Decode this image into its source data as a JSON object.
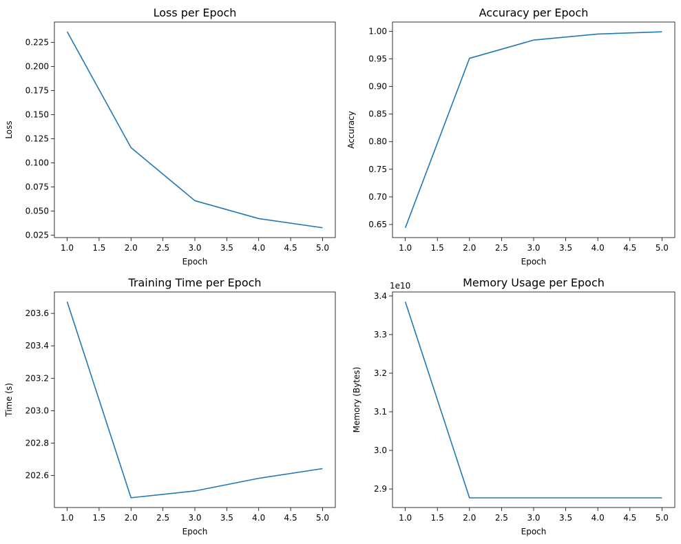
{
  "chart_data": [
    {
      "type": "line",
      "title": "Loss per Epoch",
      "xlabel": "Epoch",
      "ylabel": "Loss",
      "x": [
        1,
        2,
        3,
        4,
        5
      ],
      "series": [
        {
          "values": [
            0.2362,
            0.1158,
            0.0607,
            0.0421,
            0.0326
          ]
        }
      ],
      "xlim": [
        0.8,
        5.2
      ],
      "ylim": [
        0.0224,
        0.2462
      ],
      "xticks": [
        1.0,
        1.5,
        2.0,
        2.5,
        3.0,
        3.5,
        4.0,
        4.5,
        5.0
      ],
      "xtick_labels": [
        "1.0",
        "1.5",
        "2.0",
        "2.5",
        "3.0",
        "3.5",
        "4.0",
        "4.5",
        "5.0"
      ],
      "yticks": [
        0.025,
        0.05,
        0.075,
        0.1,
        0.125,
        0.15,
        0.175,
        0.2,
        0.225
      ],
      "ytick_labels": [
        "0.025",
        "0.050",
        "0.075",
        "0.100",
        "0.125",
        "0.150",
        "0.175",
        "0.200",
        "0.225"
      ],
      "grid": false,
      "line_color": "#1f77b4"
    },
    {
      "type": "line",
      "title": "Accuracy per Epoch",
      "xlabel": "Epoch",
      "ylabel": "Accuracy",
      "x": [
        1,
        2,
        3,
        4,
        5
      ],
      "series": [
        {
          "values": [
            0.644,
            0.951,
            0.984,
            0.995,
            0.999
          ]
        }
      ],
      "xlim": [
        0.8,
        5.2
      ],
      "ylim": [
        0.6263,
        1.0167
      ],
      "xticks": [
        1.0,
        1.5,
        2.0,
        2.5,
        3.0,
        3.5,
        4.0,
        4.5,
        5.0
      ],
      "xtick_labels": [
        "1.0",
        "1.5",
        "2.0",
        "2.5",
        "3.0",
        "3.5",
        "4.0",
        "4.5",
        "5.0"
      ],
      "yticks": [
        0.65,
        0.7,
        0.75,
        0.8,
        0.85,
        0.9,
        0.95,
        1.0
      ],
      "ytick_labels": [
        "0.65",
        "0.70",
        "0.75",
        "0.80",
        "0.85",
        "0.90",
        "0.95",
        "1.00"
      ],
      "grid": false,
      "line_color": "#1f77b4"
    },
    {
      "type": "line",
      "title": "Training Time per Epoch",
      "xlabel": "Epoch",
      "ylabel": "Time (s)",
      "x": [
        1,
        2,
        3,
        4,
        5
      ],
      "series": [
        {
          "values": [
            203.672,
            202.463,
            202.505,
            202.583,
            202.643
          ]
        }
      ],
      "xlim": [
        0.8,
        5.2
      ],
      "ylim": [
        202.403,
        203.732
      ],
      "xticks": [
        1.0,
        1.5,
        2.0,
        2.5,
        3.0,
        3.5,
        4.0,
        4.5,
        5.0
      ],
      "xtick_labels": [
        "1.0",
        "1.5",
        "2.0",
        "2.5",
        "3.0",
        "3.5",
        "4.0",
        "4.5",
        "5.0"
      ],
      "yticks": [
        202.6,
        202.8,
        203.0,
        203.2,
        203.4,
        203.6
      ],
      "ytick_labels": [
        "202.6",
        "202.8",
        "203.0",
        "203.2",
        "203.4",
        "203.6"
      ],
      "grid": false,
      "line_color": "#1f77b4"
    },
    {
      "type": "line",
      "title": "Memory Usage per Epoch",
      "xlabel": "Epoch",
      "ylabel": "Memory (Bytes)",
      "x": [
        1,
        2,
        3,
        4,
        5
      ],
      "series": [
        {
          "values": [
            3.385,
            2.877,
            2.877,
            2.877,
            2.877
          ]
        }
      ],
      "value_multiplier_label": "1e10",
      "xlim": [
        0.8,
        5.2
      ],
      "ylim": [
        2.852,
        3.4104
      ],
      "xticks": [
        1.0,
        1.5,
        2.0,
        2.5,
        3.0,
        3.5,
        4.0,
        4.5,
        5.0
      ],
      "xtick_labels": [
        "1.0",
        "1.5",
        "2.0",
        "2.5",
        "3.0",
        "3.5",
        "4.0",
        "4.5",
        "5.0"
      ],
      "yticks": [
        2.9,
        3.0,
        3.1,
        3.2,
        3.3,
        3.4
      ],
      "ytick_labels": [
        "2.9",
        "3.0",
        "3.1",
        "3.2",
        "3.3",
        "3.4"
      ],
      "grid": false,
      "line_color": "#1f77b4"
    }
  ]
}
